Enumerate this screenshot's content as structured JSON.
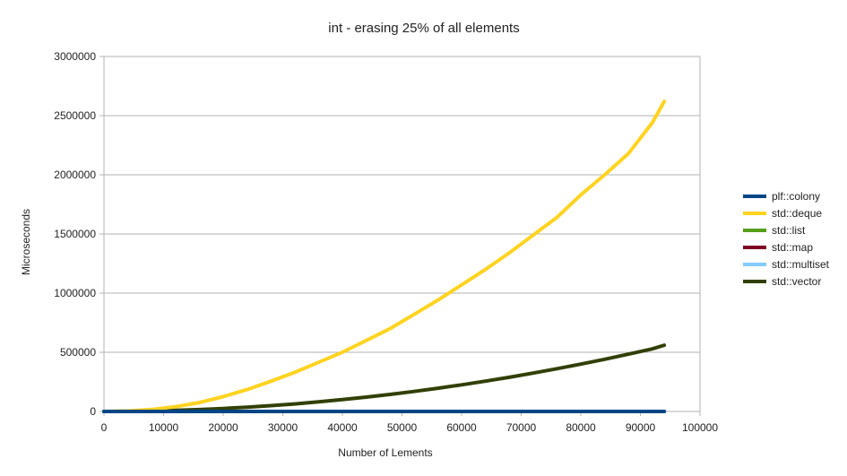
{
  "chart_data": {
    "type": "line",
    "title": "int - erasing 25% of all elements",
    "xlabel": "Number of Lements",
    "ylabel": "Microseconds",
    "xlim": [
      0,
      100000
    ],
    "ylim": [
      0,
      3000000
    ],
    "x_ticks": [
      "0",
      "10000",
      "20000",
      "30000",
      "40000",
      "50000",
      "60000",
      "70000",
      "80000",
      "90000",
      "100000"
    ],
    "y_ticks": [
      "0",
      "500000",
      "1000000",
      "1500000",
      "2000000",
      "2500000",
      "3000000"
    ],
    "grid": "horizontal",
    "legend_position": "right",
    "x": [
      0,
      4000,
      8000,
      12000,
      16000,
      20000,
      24000,
      28000,
      32000,
      36000,
      40000,
      44000,
      48000,
      52000,
      56000,
      60000,
      64000,
      68000,
      72000,
      76000,
      80000,
      84000,
      88000,
      92000,
      94000
    ],
    "series": [
      {
        "name": "plf::colony",
        "color": "#004586",
        "values": [
          0,
          0,
          0,
          0,
          0,
          0,
          0,
          0,
          0,
          0,
          0,
          0,
          0,
          0,
          0,
          0,
          0,
          0,
          0,
          0,
          0,
          0,
          0,
          0,
          0
        ]
      },
      {
        "name": "std::deque",
        "color": "#ffd320",
        "values": [
          0,
          4000,
          17000,
          40000,
          75000,
          125000,
          185000,
          255000,
          330000,
          415000,
          500000,
          600000,
          700000,
          820000,
          940000,
          1070000,
          1200000,
          1340000,
          1490000,
          1640000,
          1830000,
          2000000,
          2180000,
          2440000,
          2620000
        ]
      },
      {
        "name": "std::list",
        "color": "#579d1c",
        "values": [
          0,
          0,
          0,
          0,
          0,
          0,
          0,
          0,
          0,
          0,
          0,
          0,
          0,
          0,
          0,
          0,
          0,
          0,
          0,
          0,
          0,
          0,
          0,
          0,
          0
        ]
      },
      {
        "name": "std::map",
        "color": "#7e0021",
        "values": [
          0,
          0,
          0,
          0,
          0,
          0,
          0,
          0,
          0,
          0,
          0,
          0,
          0,
          0,
          0,
          0,
          0,
          0,
          0,
          0,
          0,
          0,
          0,
          0,
          0
        ]
      },
      {
        "name": "std::multiset",
        "color": "#83caff",
        "values": [
          0,
          0,
          0,
          0,
          0,
          0,
          0,
          0,
          0,
          0,
          0,
          0,
          0,
          0,
          0,
          0,
          0,
          0,
          0,
          0,
          0,
          0,
          0,
          0,
          0
        ]
      },
      {
        "name": "std::vector",
        "color": "#314004",
        "values": [
          0,
          1000,
          4000,
          9000,
          16000,
          25000,
          36000,
          49000,
          64000,
          81000,
          100000,
          121000,
          144000,
          169000,
          196000,
          225000,
          256000,
          289000,
          324000,
          361000,
          400000,
          441000,
          484000,
          529000,
          560000
        ]
      }
    ]
  }
}
